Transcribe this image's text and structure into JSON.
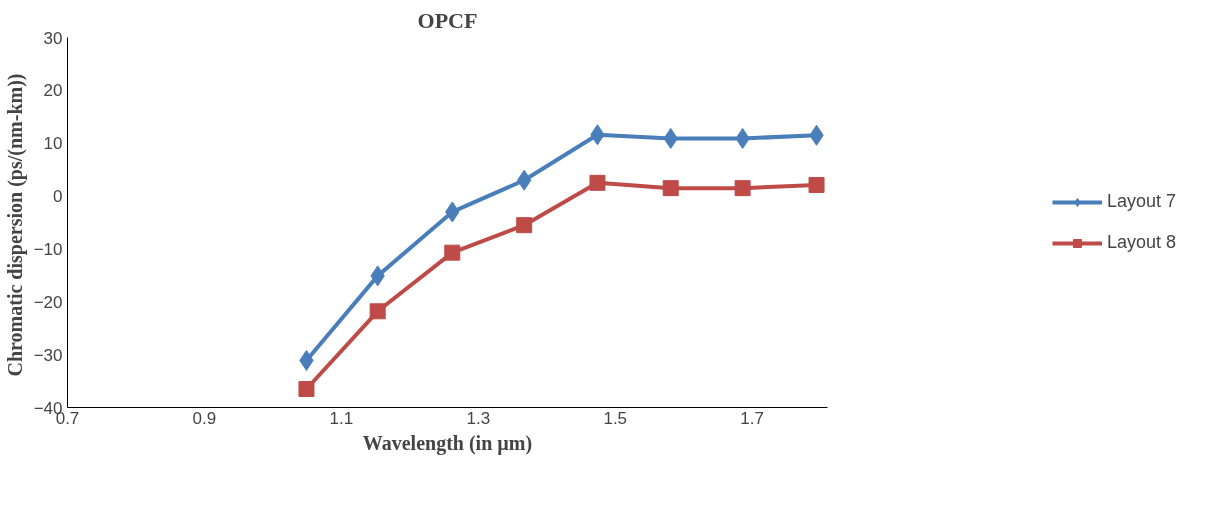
{
  "chart_data": {
    "type": "line",
    "title": "OPCF",
    "xlabel": "Wavelength (in µm)",
    "ylabel": "Chromatic dispersion  (ps/(nm-km))",
    "x": [
      1.049,
      1.153,
      1.262,
      1.367,
      1.474,
      1.581,
      1.686,
      1.794
    ],
    "series": [
      {
        "name": "Layout 7",
        "color": "#4a7ebb",
        "marker": "diamond",
        "values": [
          -31.1,
          -15.1,
          -3.0,
          3.0,
          11.6,
          10.9,
          10.9,
          11.5
        ]
      },
      {
        "name": "Layout 8",
        "color": "#be4b48",
        "marker": "square",
        "values": [
          -36.5,
          -21.8,
          -10.7,
          -5.5,
          2.5,
          1.5,
          1.5,
          2.1
        ]
      }
    ],
    "xlim": [
      0.7,
      1.81
    ],
    "ylim": [
      -40,
      30
    ],
    "xticks": [
      0.7,
      0.9,
      1.1,
      1.3,
      1.5,
      1.7
    ],
    "yticks": [
      -40,
      -30,
      -20,
      -10,
      0,
      10,
      20,
      30
    ],
    "grid": false,
    "legend": "right",
    "line_style": "solid"
  }
}
